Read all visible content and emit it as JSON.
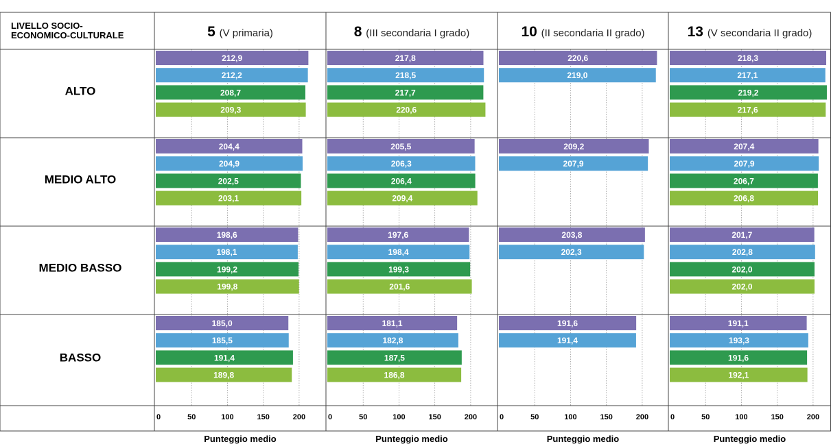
{
  "chart_data": {
    "type": "bar",
    "orientation": "horizontal",
    "header_label": "LIVELLO SOCIO-ECONOMICO-CULTURALE",
    "panels": [
      {
        "number": "5",
        "subtitle": "(V primaria)"
      },
      {
        "number": "8",
        "subtitle": "(III secondaria I grado)"
      },
      {
        "number": "10",
        "subtitle": "(II secondaria II grado)"
      },
      {
        "number": "13",
        "subtitle": "(V secondaria II grado)"
      }
    ],
    "row_categories": [
      "ALTO",
      "MEDIO ALTO",
      "MEDIO BASSO",
      "BASSO"
    ],
    "series_colors": [
      "#7b6fb0",
      "#55a3d6",
      "#2e9a4f",
      "#8cbc3f"
    ],
    "values": [
      [
        [
          212.9,
          212.2,
          208.7,
          209.3
        ],
        [
          204.4,
          204.9,
          202.5,
          203.1
        ],
        [
          198.6,
          198.1,
          199.2,
          199.8
        ],
        [
          185.0,
          185.5,
          191.4,
          189.8
        ]
      ],
      [
        [
          217.8,
          218.5,
          217.7,
          220.6
        ],
        [
          205.5,
          206.3,
          206.4,
          209.4
        ],
        [
          197.6,
          198.4,
          199.3,
          201.6
        ],
        [
          181.1,
          182.8,
          187.5,
          186.8
        ]
      ],
      [
        [
          220.6,
          219.0
        ],
        [
          209.2,
          207.9
        ],
        [
          203.8,
          202.3
        ],
        [
          191.6,
          191.4
        ]
      ],
      [
        [
          218.3,
          217.1,
          219.2,
          217.6
        ],
        [
          207.4,
          207.9,
          206.7,
          206.8
        ],
        [
          201.7,
          202.8,
          202.0,
          202.0
        ],
        [
          191.1,
          193.3,
          191.6,
          192.1
        ]
      ]
    ],
    "value_labels": [
      [
        [
          "212,9",
          "212,2",
          "208,7",
          "209,3"
        ],
        [
          "204,4",
          "204,9",
          "202,5",
          "203,1"
        ],
        [
          "198,6",
          "198,1",
          "199,2",
          "199,8"
        ],
        [
          "185,0",
          "185,5",
          "191,4",
          "189,8"
        ]
      ],
      [
        [
          "217,8",
          "218,5",
          "217,7",
          "220,6"
        ],
        [
          "205,5",
          "206,3",
          "206,4",
          "209,4"
        ],
        [
          "197,6",
          "198,4",
          "199,3",
          "201,6"
        ],
        [
          "181,1",
          "182,8",
          "187,5",
          "186,8"
        ]
      ],
      [
        [
          "220,6",
          "219,0"
        ],
        [
          "209,2",
          "207,9"
        ],
        [
          "203,8",
          "202,3"
        ],
        [
          "191,6",
          "191,4"
        ]
      ],
      [
        [
          "218,3",
          "217,1",
          "219,2",
          "217,6"
        ],
        [
          "207,4",
          "207,9",
          "206,7",
          "206,8"
        ],
        [
          "201,7",
          "202,8",
          "202,0",
          "202,0"
        ],
        [
          "191,1",
          "193,3",
          "191,6",
          "192,1"
        ]
      ]
    ],
    "xlim": [
      0,
      225
    ],
    "xticks": [
      0,
      50,
      100,
      150,
      200
    ],
    "xtick_labels": [
      "0",
      "50",
      "100",
      "150",
      "200"
    ],
    "xlabel": "Punteggio medio"
  }
}
